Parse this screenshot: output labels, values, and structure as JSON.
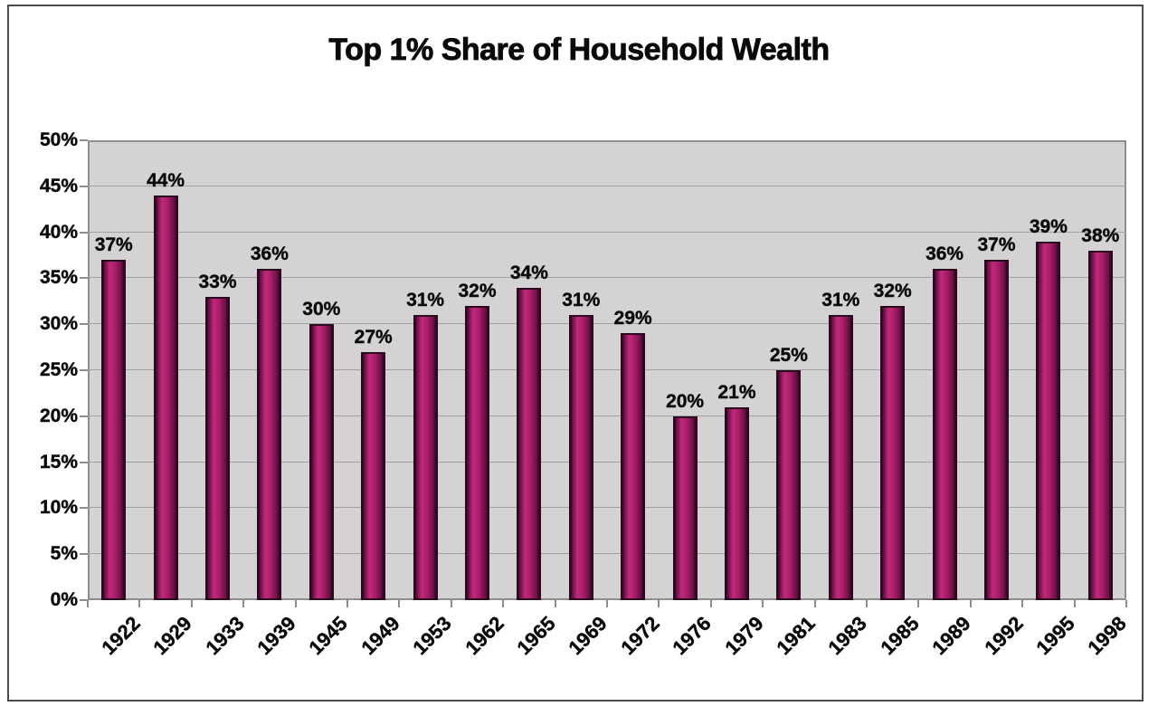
{
  "chart_data": {
    "type": "bar",
    "title": "Top 1% Share of Household Wealth",
    "categories": [
      "1922",
      "1929",
      "1933",
      "1939",
      "1945",
      "1949",
      "1953",
      "1962",
      "1965",
      "1969",
      "1972",
      "1976",
      "1979",
      "1981",
      "1983",
      "1985",
      "1989",
      "1992",
      "1995",
      "1998"
    ],
    "values": [
      37,
      44,
      33,
      36,
      30,
      27,
      31,
      32,
      34,
      31,
      29,
      20,
      21,
      25,
      31,
      32,
      36,
      37,
      39,
      38
    ],
    "bar_labels": [
      "37%",
      "44%",
      "33%",
      "36%",
      "30%",
      "27%",
      "31%",
      "32%",
      "34%",
      "31%",
      "29%",
      "20%",
      "21%",
      "25%",
      "31%",
      "32%",
      "36%",
      "37%",
      "39%",
      "38%"
    ],
    "yticks": [
      50,
      45,
      40,
      35,
      30,
      25,
      20,
      15,
      10,
      5,
      0
    ],
    "ytick_labels": [
      "50%",
      "45%",
      "40%",
      "35%",
      "30%",
      "25%",
      "20%",
      "15%",
      "10%",
      "5%",
      "0%"
    ],
    "ylim": [
      0,
      50
    ],
    "xlabel": "",
    "ylabel": "",
    "grid": true,
    "legend_position": "none",
    "colors": {
      "bar_center": "#c12a7c",
      "bar_mid": "#a81e68",
      "bar_dark": "#6d0f45",
      "bar_border": "#2a0820",
      "plot_bg": "#d5d2d3",
      "gridline": "#a3a0a1",
      "axis": "#8f8c8d",
      "frame": "#4b4b4b",
      "text": "#0a0a0a"
    }
  }
}
